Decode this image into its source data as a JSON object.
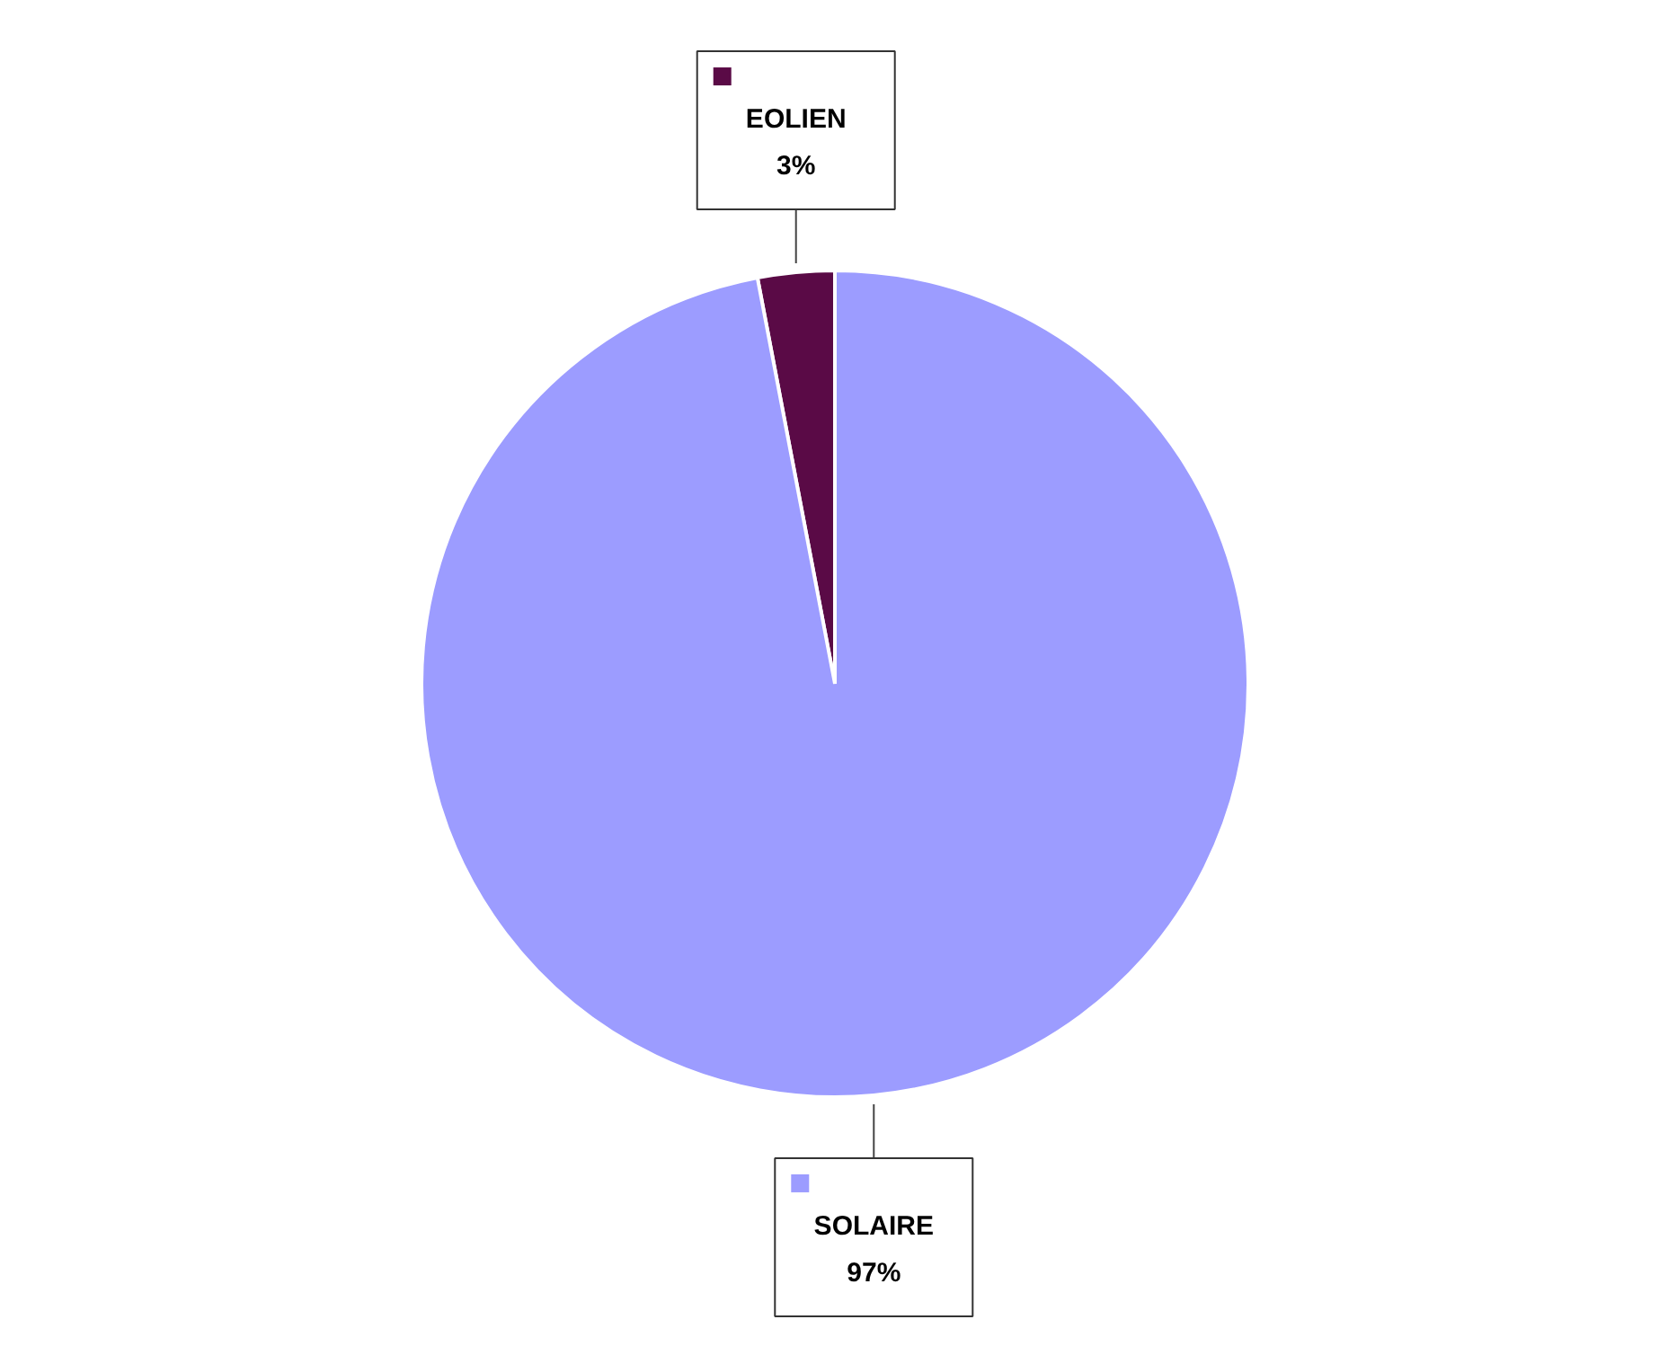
{
  "chart_data": {
    "type": "pie",
    "categories": [
      "EOLIEN",
      "SOLAIRE"
    ],
    "values": [
      3,
      97
    ],
    "colors": [
      "#5a0a46",
      "#9c9cff"
    ],
    "value_labels": [
      "3%",
      "97%"
    ],
    "legend": "top"
  }
}
